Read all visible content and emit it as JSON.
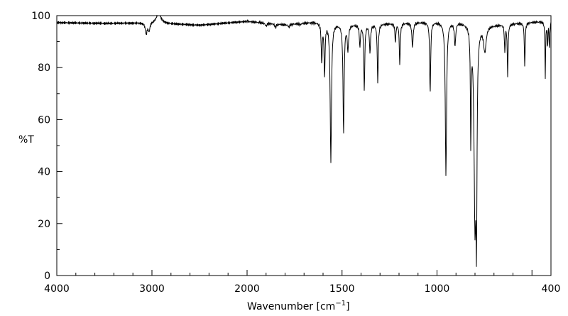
{
  "chart_data": {
    "type": "line",
    "title": "",
    "xlabel": "Wavenumber [cm",
    "xlabel_sup": "−1",
    "xlabel_end": "]",
    "ylabel": "%T",
    "xlim": [
      4000,
      400
    ],
    "x_scale_break": 2000,
    "ylim": [
      0,
      100
    ],
    "x_tick_labels": [
      "4000",
      "3000",
      "2000",
      "1500",
      "1000",
      "400"
    ],
    "x_tick_values": [
      4000,
      3000,
      2000,
      1500,
      1000,
      400
    ],
    "y_tick_labels": [
      "0",
      "20",
      "40",
      "60",
      "80",
      "100"
    ],
    "y_tick_values": [
      0,
      20,
      40,
      60,
      80,
      100
    ],
    "grid": false,
    "baseline": [
      [
        4000,
        97.3
      ],
      [
        3500,
        97
      ],
      [
        3000,
        97.2
      ],
      [
        2500,
        96.3
      ],
      [
        2000,
        97.8
      ],
      [
        1800,
        96.5
      ],
      [
        1650,
        97.5
      ],
      [
        1400,
        96.5
      ],
      [
        1100,
        97.5
      ],
      [
        900,
        97.8
      ],
      [
        700,
        96.5
      ],
      [
        500,
        97.5
      ],
      [
        400,
        98
      ]
    ],
    "peaks": [
      [
        3060,
        93,
        12
      ],
      [
        3030,
        94,
        10
      ],
      [
        2930,
        101.5,
        25
      ],
      [
        1900,
        96,
        5
      ],
      [
        1850,
        95.5,
        5
      ],
      [
        1780,
        95.5,
        4
      ],
      [
        1720,
        96.5,
        4
      ],
      [
        1607,
        82,
        3
      ],
      [
        1592,
        77,
        3
      ],
      [
        1559,
        43.5,
        4
      ],
      [
        1492,
        55,
        3.5
      ],
      [
        1469,
        87,
        4
      ],
      [
        1406,
        88,
        3
      ],
      [
        1383,
        71,
        3
      ],
      [
        1353,
        86,
        3.5
      ],
      [
        1312,
        74,
        3
      ],
      [
        1219,
        90,
        3
      ],
      [
        1196,
        81,
        3
      ],
      [
        1129,
        88,
        4
      ],
      [
        1036,
        70,
        3
      ],
      [
        953,
        38.5,
        4
      ],
      [
        905,
        89,
        4
      ],
      [
        822,
        52.7,
        2.5
      ],
      [
        800,
        23,
        6
      ],
      [
        792,
        31,
        3
      ],
      [
        748,
        87,
        8
      ],
      [
        643,
        86,
        2.5
      ],
      [
        628,
        77,
        2.5
      ],
      [
        538,
        80,
        2.5
      ],
      [
        430,
        76,
        2
      ],
      [
        418,
        88,
        2
      ],
      [
        408,
        87,
        2
      ]
    ]
  }
}
